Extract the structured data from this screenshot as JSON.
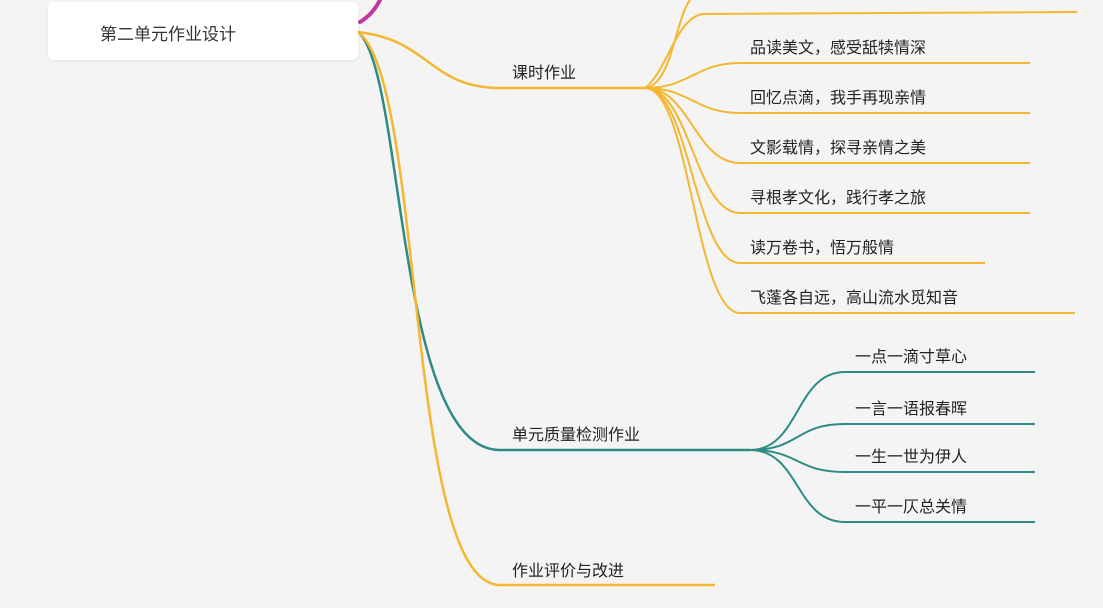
{
  "root": {
    "label": "第二单元作业设计"
  },
  "branches": [
    {
      "label": "课时作业",
      "color": "#f5b731",
      "children": [
        "品读美文，感受舐犊情深",
        "回忆点滴，我手再现亲情",
        "文影载情，探寻亲情之美",
        "寻根孝文化，践行孝之旅",
        "读万卷书，悟万般情",
        "飞蓬各自远，高山流水觅知音"
      ]
    },
    {
      "label": "单元质量检测作业",
      "color": "#2e8b84",
      "children": [
        "一点一滴寸草心",
        "一言一语报春晖",
        "一生一世为伊人",
        "一平一仄总关情"
      ]
    },
    {
      "label": "作业评价与改进",
      "color": "#f5b731",
      "children": []
    }
  ],
  "colors": {
    "orange": "#f5b731",
    "teal": "#2e8b84",
    "purple": "#c0399f",
    "canvas": "#f4f4f4"
  }
}
